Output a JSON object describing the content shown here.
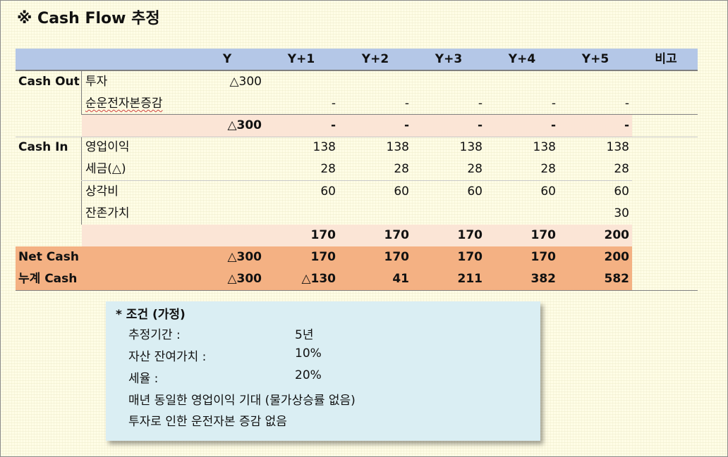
{
  "title": "※ Cash Flow 추정",
  "columns": [
    "Y",
    "Y+1",
    "Y+2",
    "Y+3",
    "Y+4",
    "Y+5",
    "비고"
  ],
  "cash_out": {
    "label": "Cash Out",
    "rows": [
      {
        "label": "투자",
        "values": [
          "△300",
          "",
          "",
          "",
          "",
          ""
        ]
      },
      {
        "label": "순운전자본증감",
        "values": [
          "",
          "-",
          "-",
          "-",
          "-",
          "-"
        ]
      }
    ],
    "subtotal": [
      "△300",
      "-",
      "-",
      "-",
      "-",
      "-"
    ]
  },
  "cash_in": {
    "label": "Cash In",
    "rows": [
      {
        "label": "영업이익",
        "values": [
          "",
          "138",
          "138",
          "138",
          "138",
          "138"
        ]
      },
      {
        "label": "세금(△)",
        "values": [
          "",
          "28",
          "28",
          "28",
          "28",
          "28"
        ]
      },
      {
        "label": "상각비",
        "values": [
          "",
          "60",
          "60",
          "60",
          "60",
          "60"
        ]
      },
      {
        "label": "잔존가치",
        "values": [
          "",
          "",
          "",
          "",
          "",
          "30"
        ]
      }
    ],
    "subtotal": [
      "",
      "170",
      "170",
      "170",
      "170",
      "200"
    ]
  },
  "net_cash": {
    "label": "Net Cash",
    "values": [
      "△300",
      "170",
      "170",
      "170",
      "170",
      "200"
    ]
  },
  "cum_cash": {
    "label": "누계 Cash",
    "values": [
      "△300",
      "△130",
      "41",
      "211",
      "382",
      "582"
    ]
  },
  "conditions": {
    "heading": "* 조건 (가정)",
    "items": [
      {
        "label": "추정기간 :",
        "value": "5년"
      },
      {
        "label": "자산 잔여가치 :",
        "value": "10%"
      },
      {
        "label": "세율 :",
        "value": "20%"
      },
      {
        "label": "매년 동일한 영업이익 기대 (물가상승률 없음)",
        "value": ""
      },
      {
        "label": "투자로 인한 운전자본 증감 없음",
        "value": ""
      }
    ]
  }
}
